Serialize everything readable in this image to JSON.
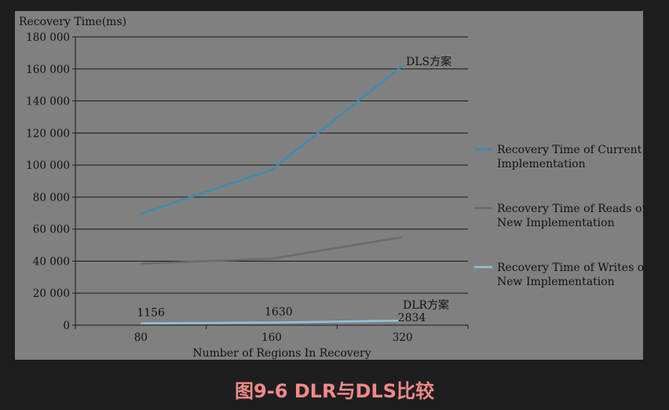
{
  "caption": "图9-6 DLR与DLS比较",
  "chart_data": {
    "type": "line",
    "ylabel": "Recovery Time(ms)",
    "xlabel": "Number of Regions In Recovery",
    "categories": [
      "80",
      "160",
      "320"
    ],
    "ylim": [
      0,
      180000
    ],
    "yticks": [
      0,
      20000,
      40000,
      60000,
      80000,
      100000,
      120000,
      140000,
      160000,
      180000
    ],
    "ytick_labels": [
      "0",
      "20 000",
      "40 000",
      "60 000",
      "80 000",
      "100 000",
      "120 000",
      "140 000",
      "160 000",
      "180 000"
    ],
    "grid": true,
    "legend_position": "right",
    "series": [
      {
        "name": "Recovery Time of Current Implementation",
        "legend_lines": [
          "Recovery Time of Current",
          "Implementation"
        ],
        "values": [
          69500,
          97000,
          162000
        ],
        "color": "#3b8cb0"
      },
      {
        "name": "Recovery Time of Reads of New Implementation",
        "legend_lines": [
          "Recovery Time of Reads of",
          "New Implementation"
        ],
        "values": [
          38500,
          41500,
          55000
        ],
        "color": "#6b6b6b"
      },
      {
        "name": "Recovery Time of Writes of New Implementation",
        "legend_lines": [
          "Recovery Time of Writes of",
          "New Implementation"
        ],
        "values": [
          1156,
          1630,
          2834
        ],
        "color": "#8fc4dc"
      }
    ],
    "data_labels": [
      "1156",
      "1630",
      "2834"
    ],
    "annotations": [
      "DLS方案",
      "DLR方案"
    ]
  }
}
